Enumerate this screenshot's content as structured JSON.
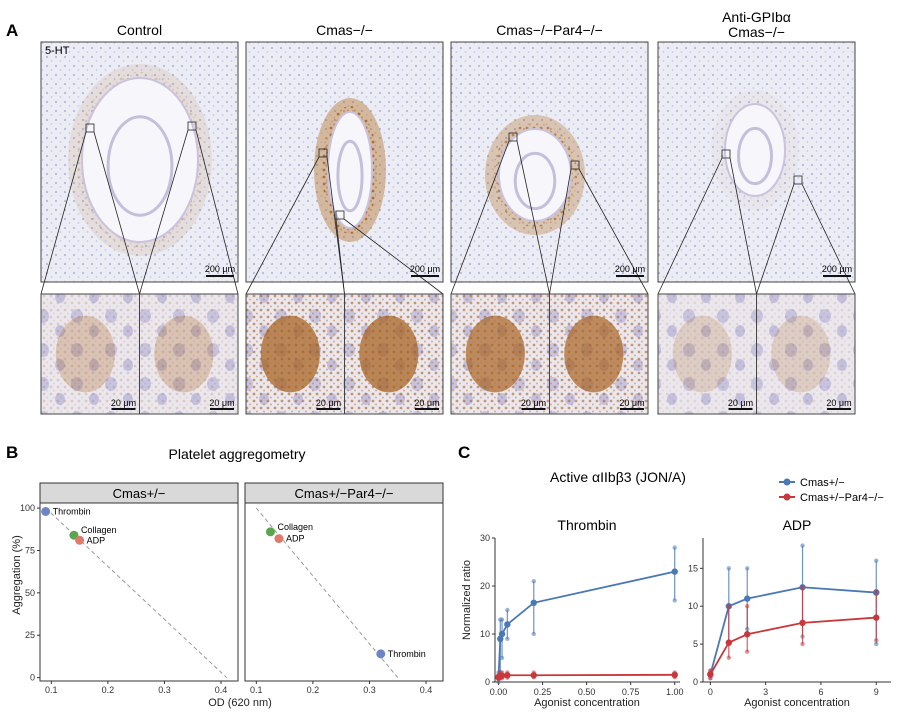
{
  "panel_a": {
    "label": "A",
    "stain": "5-HT",
    "groups": [
      {
        "title": "Control",
        "subtitle": "",
        "scale_top": "200 μm",
        "scale_bl": "20 μm",
        "scale_br": "20 μm"
      },
      {
        "title": "Cmas−/−",
        "subtitle": "",
        "scale_top": "200 μm",
        "scale_bl": "20 μm",
        "scale_br": "20 μm"
      },
      {
        "title": "Cmas−/−Par4−/−",
        "subtitle": "",
        "scale_top": "200 μm",
        "scale_bl": "20 μm",
        "scale_br": "20 μm"
      },
      {
        "title": "Anti-GPIbα",
        "subtitle": "Cmas−/−",
        "scale_top": "200 μm",
        "scale_bl": "20 μm",
        "scale_br": "20 μm"
      }
    ]
  },
  "panel_b": {
    "label": "B",
    "title": "Platelet aggregometry",
    "xlabel": "OD (620 nm)",
    "ylabel": "Aggregation (%)",
    "facets": [
      "Cmas+/−",
      "Cmas+/−Par4−/−"
    ],
    "x_ticks": [
      "0.1",
      "0.2",
      "0.3",
      "0.4"
    ],
    "y_ticks": [
      "0",
      "25",
      "50",
      "75",
      "100"
    ]
  },
  "panel_c": {
    "label": "C",
    "title": "Active αIIbβ3 (JON/A)",
    "xlabel": "Agonist concentration",
    "ylabel": "Normalized ratio",
    "legend": [
      "Cmas+/−",
      "Cmas+/−Par4−/−"
    ],
    "thrombin_title": "Thrombin",
    "adp_title": "ADP",
    "thrombin_x_ticks": [
      "0.00",
      "0.25",
      "0.50",
      "0.75",
      "1.00"
    ],
    "thrombin_y_ticks": [
      "0",
      "10",
      "20",
      "30"
    ],
    "adp_x_ticks": [
      "0",
      "3",
      "6",
      "9"
    ],
    "adp_y_ticks": [
      "0",
      "5",
      "10",
      "15"
    ]
  },
  "colors": {
    "blue": "#4a78b5",
    "red": "#c8383b",
    "green": "#5aa64e",
    "salmon": "#e07a6e",
    "stain": "#b06a1f"
  },
  "chart_data": [
    {
      "type": "scatter",
      "facet": "Cmas+/−",
      "xlim": [
        0.08,
        0.43
      ],
      "ylim": [
        -2,
        103
      ],
      "points": [
        {
          "label": "Thrombin",
          "x": 0.09,
          "y": 98,
          "color": "#6b86c6"
        },
        {
          "label": "Collagen",
          "x": 0.14,
          "y": 84,
          "color": "#5aa64e"
        },
        {
          "label": "ADP",
          "x": 0.15,
          "y": 81,
          "color": "#e07a6e"
        }
      ]
    },
    {
      "type": "scatter",
      "facet": "Cmas+/−Par4−/−",
      "xlim": [
        0.08,
        0.43
      ],
      "ylim": [
        -2,
        103
      ],
      "points": [
        {
          "label": "Collagen",
          "x": 0.125,
          "y": 86,
          "color": "#5aa64e"
        },
        {
          "label": "ADP",
          "x": 0.14,
          "y": 82,
          "color": "#e07a6e"
        },
        {
          "label": "Thrombin",
          "x": 0.32,
          "y": 14,
          "color": "#6b86c6"
        }
      ]
    },
    {
      "type": "line",
      "title": "Thrombin",
      "xlim": [
        -0.02,
        1.03
      ],
      "ylim": [
        0,
        30
      ],
      "x": [
        0,
        0.01,
        0.02,
        0.05,
        0.2,
        1.0
      ],
      "series": [
        {
          "name": "Cmas+/−",
          "color": "#4a78b5",
          "values": [
            1,
            9,
            10,
            12,
            16.5,
            23
          ],
          "err": [
            [
              0,
              2
            ],
            [
              2,
              13
            ],
            [
              5,
              13
            ],
            [
              9,
              15
            ],
            [
              10,
              21
            ],
            [
              17,
              28
            ]
          ]
        },
        {
          "name": "Cmas+/−Par4−/−",
          "color": "#c8383b",
          "values": [
            1,
            1.2,
            1.3,
            1.4,
            1.4,
            1.5
          ],
          "err": [
            [
              0.5,
              1.5
            ],
            [
              0.8,
              2
            ],
            [
              0.8,
              2
            ],
            [
              0.9,
              2
            ],
            [
              1,
              2
            ],
            [
              1,
              2
            ]
          ]
        }
      ]
    },
    {
      "type": "line",
      "title": "ADP",
      "xlim": [
        -0.4,
        9.8
      ],
      "ylim": [
        0,
        19
      ],
      "x": [
        0,
        1,
        2,
        5,
        9
      ],
      "series": [
        {
          "name": "Cmas+/−",
          "color": "#4a78b5",
          "values": [
            1,
            10,
            11,
            12.5,
            11.8
          ],
          "err": [
            [
              0.5,
              1.5
            ],
            [
              5,
              15
            ],
            [
              7,
              15
            ],
            [
              6,
              18
            ],
            [
              5,
              16
            ]
          ]
        },
        {
          "name": "Cmas+/−Par4−/−",
          "color": "#c8383b",
          "values": [
            1,
            5.2,
            6.3,
            7.8,
            8.5
          ],
          "err": [
            [
              0.5,
              1.5
            ],
            [
              3.2,
              10
            ],
            [
              4,
              10
            ],
            [
              5,
              12.5
            ],
            [
              5.5,
              12
            ]
          ]
        }
      ]
    }
  ]
}
